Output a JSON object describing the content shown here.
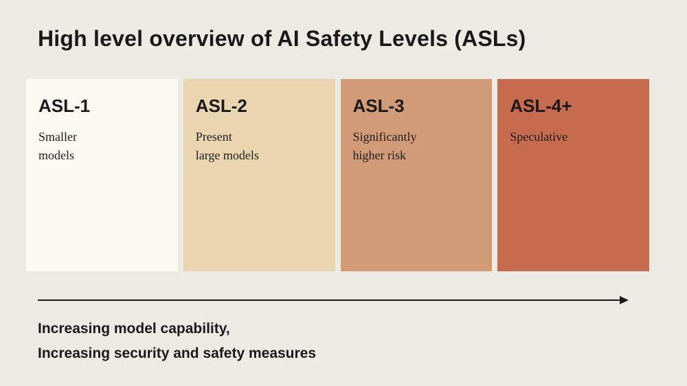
{
  "title": "High level overview of AI Safety Levels (ASLs)",
  "cards": [
    {
      "label": "ASL-1",
      "desc_line1": "Smaller",
      "desc_line2": "models",
      "bg": "#FBFAF2"
    },
    {
      "label": "ASL-2",
      "desc_line1": "Present",
      "desc_line2": "large models",
      "bg": "#E9D6B0"
    },
    {
      "label": "ASL-3",
      "desc_line1": "Significantly",
      "desc_line2": "higher risk",
      "bg": "#D29B77"
    },
    {
      "label": "ASL-4+",
      "desc_line1": "Speculative",
      "desc_line2": "",
      "bg": "#C76B4F"
    }
  ],
  "axis": {
    "caption_line1": "Increasing model capability,",
    "caption_line2": "Increasing security and safety measures"
  },
  "colors": {
    "page_background": "#ECEBE3",
    "text": "#191919",
    "arrow": "#191919"
  }
}
